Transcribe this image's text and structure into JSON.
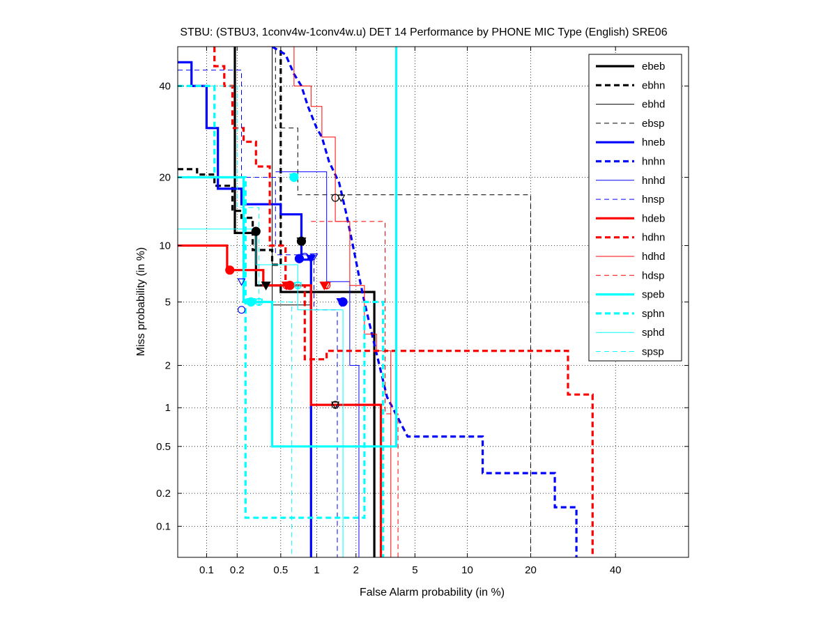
{
  "chart_data": {
    "type": "line",
    "title": "STBU: (STBU3, 1conv4w-1conv4w.u) DET 14 Performance by PHONE MIC Type (English) SRE06",
    "xlabel": "False Alarm probability (in %)",
    "ylabel": "Miss probability (in %)",
    "x_scale": "probit",
    "y_scale": "probit",
    "xlim": [
      0.05,
      60
    ],
    "ylim": [
      0.05,
      50
    ],
    "x_ticks": [
      0.1,
      0.2,
      0.5,
      1,
      2,
      5,
      10,
      20,
      40
    ],
    "x_tick_labels": [
      "0.1",
      "0.2",
      "0.5",
      "1",
      "2",
      "5",
      "10",
      "20",
      "40"
    ],
    "y_ticks": [
      0.1,
      0.2,
      0.5,
      1,
      2,
      5,
      10,
      20,
      40
    ],
    "y_tick_labels": [
      "0.1",
      "0.2",
      "0.5",
      "1",
      "2",
      "5",
      "10",
      "20",
      "40"
    ],
    "grid": true,
    "legend_position": "top-right",
    "series": [
      {
        "name": "ebeb",
        "color": "#000000",
        "style": "solid-thick",
        "points": [
          [
            0.19,
            50
          ],
          [
            0.19,
            11.5
          ],
          [
            0.3,
            11.5
          ],
          [
            0.3,
            6.2
          ],
          [
            0.5,
            6.2
          ],
          [
            0.5,
            5.7
          ],
          [
            2.7,
            5.7
          ],
          [
            2.7,
            0.05
          ]
        ],
        "min_dcf": [
          0.3,
          11.7
        ],
        "act_dcf": [
          0.37,
          6.2
        ]
      },
      {
        "name": "ebhn",
        "color": "#000000",
        "style": "dashed-thick",
        "points": [
          [
            0.05,
            21.5
          ],
          [
            0.08,
            21.5
          ],
          [
            0.08,
            20.5
          ],
          [
            0.12,
            20.5
          ],
          [
            0.12,
            18.5
          ],
          [
            0.18,
            18.5
          ],
          [
            0.18,
            14.5
          ],
          [
            0.22,
            14.5
          ],
          [
            0.22,
            13.5
          ],
          [
            0.28,
            13.5
          ],
          [
            0.28,
            9.5
          ],
          [
            0.42,
            9.5
          ],
          [
            0.42,
            8
          ],
          [
            0.5,
            8
          ],
          [
            0.5,
            50
          ]
        ],
        "min_dcf": [
          0.75,
          10.5
        ],
        "act_dcf": [
          0.75,
          10.5
        ]
      },
      {
        "name": "ebhd",
        "color": "#000000",
        "style": "solid-thin",
        "points": [
          [
            0.42,
            50
          ],
          [
            0.42,
            4.8
          ],
          [
            0.9,
            4.8
          ],
          [
            0.9,
            0.05
          ]
        ],
        "min_dcf": [
          1.4,
          1.05
        ],
        "act_dcf": [
          1.4,
          1.05
        ]
      },
      {
        "name": "ebsp",
        "color": "#000000",
        "style": "dashed-thin",
        "points": [
          [
            0.05,
            50
          ],
          [
            0.45,
            50
          ],
          [
            0.45,
            30
          ],
          [
            0.7,
            30
          ],
          [
            0.7,
            17
          ],
          [
            20,
            17
          ],
          [
            20,
            0.05
          ]
        ],
        "min_dcf": [
          1.4,
          16.5
        ],
        "act_dcf": [
          1.55,
          16.5
        ]
      },
      {
        "name": "hneb",
        "color": "#0000ff",
        "style": "solid-thick",
        "points": [
          [
            0.05,
            46
          ],
          [
            0.07,
            46
          ],
          [
            0.07,
            40
          ],
          [
            0.1,
            40
          ],
          [
            0.1,
            30
          ],
          [
            0.13,
            30
          ],
          [
            0.13,
            18
          ],
          [
            0.22,
            18
          ],
          [
            0.22,
            15.5
          ],
          [
            0.5,
            15.5
          ],
          [
            0.5,
            14
          ],
          [
            0.75,
            14
          ],
          [
            0.75,
            8.5
          ],
          [
            0.9,
            8.5
          ],
          [
            0.9,
            0.05
          ]
        ],
        "min_dcf": [
          0.72,
          8.6
        ],
        "act_dcf": [
          0.9,
          8.6
        ]
      },
      {
        "name": "hnhn",
        "color": "#0000ff",
        "style": "dashed-thick",
        "points": [
          [
            0.42,
            50
          ],
          [
            0.55,
            48
          ],
          [
            0.65,
            43
          ],
          [
            0.75,
            40
          ],
          [
            0.85,
            35
          ],
          [
            1,
            30
          ],
          [
            1.1,
            28
          ],
          [
            1.25,
            23
          ],
          [
            1.5,
            19
          ],
          [
            1.7,
            14
          ],
          [
            1.9,
            10
          ],
          [
            2.1,
            7
          ],
          [
            2.3,
            5
          ],
          [
            2.6,
            3.2
          ],
          [
            3.3,
            1.2
          ],
          [
            4.5,
            0.6
          ],
          [
            12,
            0.6
          ],
          [
            12,
            0.3
          ],
          [
            25,
            0.3
          ],
          [
            25,
            0.15
          ],
          [
            30,
            0.15
          ],
          [
            30,
            0.05
          ]
        ],
        "min_dcf": [
          1.6,
          5
        ],
        "act_dcf": [
          1.55,
          5
        ]
      },
      {
        "name": "hnhd",
        "color": "#0000ff",
        "style": "solid-thin",
        "points": [
          [
            0.45,
            21
          ],
          [
            1.2,
            21
          ],
          [
            1.2,
            6.5
          ],
          [
            1.8,
            6.5
          ],
          [
            1.8,
            2
          ],
          [
            2.1,
            2
          ],
          [
            2.1,
            0.05
          ]
        ],
        "min_dcf": [
          0.8,
          8.8
        ],
        "act_dcf": [
          0.95,
          8.8
        ]
      },
      {
        "name": "hnsp",
        "color": "#0000ff",
        "style": "dashed-thin",
        "points": [
          [
            0.05,
            44
          ],
          [
            0.22,
            44
          ],
          [
            0.22,
            20
          ],
          [
            0.45,
            20
          ],
          [
            0.45,
            9
          ],
          [
            0.95,
            9
          ],
          [
            0.95,
            4.5
          ],
          [
            1.45,
            4.5
          ],
          [
            1.45,
            0.05
          ]
        ],
        "min_dcf": [
          0.22,
          4.5
        ],
        "act_dcf": [
          0.22,
          6.5
        ]
      },
      {
        "name": "hdeb",
        "color": "#ff0000",
        "style": "solid-thick",
        "points": [
          [
            0.05,
            10
          ],
          [
            0.16,
            10
          ],
          [
            0.16,
            7.5
          ],
          [
            0.35,
            7.5
          ],
          [
            0.35,
            6.2
          ],
          [
            0.9,
            6.2
          ],
          [
            0.9,
            1.05
          ],
          [
            3,
            1.05
          ],
          [
            3,
            0.05
          ]
        ],
        "min_dcf": [
          0.17,
          7.5
        ],
        "act_dcf": [
          0.56,
          6.2
        ]
      },
      {
        "name": "hdhn",
        "color": "#ff0000",
        "style": "dashed-thick",
        "points": [
          [
            0.12,
            50
          ],
          [
            0.12,
            45
          ],
          [
            0.15,
            45
          ],
          [
            0.15,
            40
          ],
          [
            0.18,
            40
          ],
          [
            0.18,
            30
          ],
          [
            0.23,
            30
          ],
          [
            0.23,
            27
          ],
          [
            0.3,
            27
          ],
          [
            0.3,
            22
          ],
          [
            0.4,
            22
          ],
          [
            0.4,
            10
          ],
          [
            0.55,
            10
          ],
          [
            0.55,
            6.2
          ],
          [
            0.8,
            6.2
          ],
          [
            0.8,
            2.2
          ],
          [
            1.2,
            2.2
          ],
          [
            1.2,
            2.5
          ],
          [
            28,
            2.5
          ],
          [
            28,
            1.25
          ],
          [
            34,
            1.25
          ],
          [
            34,
            0.05
          ]
        ],
        "min_dcf": [
          0.6,
          6.2
        ],
        "act_dcf": [
          1.15,
          6.2
        ]
      },
      {
        "name": "hdhd",
        "color": "#ff0000",
        "style": "solid-thin",
        "points": [
          [
            0.42,
            50
          ],
          [
            0.65,
            50
          ],
          [
            0.65,
            40
          ],
          [
            0.9,
            40
          ],
          [
            0.9,
            35
          ],
          [
            1.1,
            35
          ],
          [
            1.1,
            28
          ],
          [
            1.4,
            28
          ],
          [
            1.4,
            13
          ],
          [
            1.8,
            13
          ],
          [
            1.8,
            6.2
          ],
          [
            2.3,
            6.2
          ],
          [
            2.3,
            3.2
          ],
          [
            2.8,
            3.2
          ],
          [
            2.8,
            2.5
          ],
          [
            3.5,
            2.5
          ],
          [
            3.5,
            0.05
          ]
        ],
        "min_dcf": [
          1.2,
          6.2
        ],
        "act_dcf": [
          1.2,
          6.2
        ]
      },
      {
        "name": "hdsp",
        "color": "#ff0000",
        "style": "dashed-thin",
        "points": [
          [
            0.9,
            13
          ],
          [
            3.2,
            13
          ],
          [
            3.2,
            0.9
          ],
          [
            3.9,
            0.9
          ],
          [
            3.9,
            0.05
          ]
        ],
        "min_dcf": [
          0.56,
          6.2
        ],
        "act_dcf": [
          0.56,
          6.2
        ]
      },
      {
        "name": "speb",
        "color": "#00ffff",
        "style": "solid-thick",
        "points": [
          [
            0.05,
            20
          ],
          [
            0.23,
            20
          ],
          [
            0.23,
            5
          ],
          [
            0.42,
            5
          ],
          [
            0.42,
            0.5
          ],
          [
            3.8,
            0.5
          ],
          [
            3.8,
            50
          ]
        ],
        "min_dcf": [
          0.27,
          5
        ],
        "act_dcf": [
          0.27,
          5
        ]
      },
      {
        "name": "sphn",
        "color": "#00ffff",
        "style": "dashed-thick",
        "points": [
          [
            0.05,
            40
          ],
          [
            0.12,
            40
          ],
          [
            0.12,
            20
          ],
          [
            0.24,
            20
          ],
          [
            0.24,
            0.12
          ],
          [
            2.3,
            0.12
          ],
          [
            2.3,
            5
          ],
          [
            3.1,
            5
          ],
          [
            3.1,
            0.05
          ]
        ],
        "min_dcf": [
          0.65,
          20
        ],
        "act_dcf": [
          0.65,
          20
        ]
      },
      {
        "name": "sphd",
        "color": "#00ffff",
        "style": "solid-thin",
        "points": [
          [
            0.05,
            12
          ],
          [
            0.3,
            12
          ],
          [
            0.3,
            8
          ],
          [
            0.7,
            8
          ],
          [
            0.7,
            4.5
          ],
          [
            1.6,
            4.5
          ],
          [
            1.6,
            0.05
          ]
        ],
        "min_dcf": [
          0.7,
          6.2
        ],
        "act_dcf": [
          0.7,
          6.2
        ]
      },
      {
        "name": "spsp",
        "color": "#00ffff",
        "style": "dashed-thin",
        "points": [
          [
            0.05,
            40
          ],
          [
            0.2,
            40
          ],
          [
            0.2,
            15
          ],
          [
            0.32,
            15
          ],
          [
            0.32,
            5
          ],
          [
            0.62,
            5
          ],
          [
            0.62,
            0.05
          ]
        ],
        "min_dcf": [
          0.32,
          5
        ],
        "act_dcf": [
          0.32,
          5
        ]
      }
    ]
  }
}
